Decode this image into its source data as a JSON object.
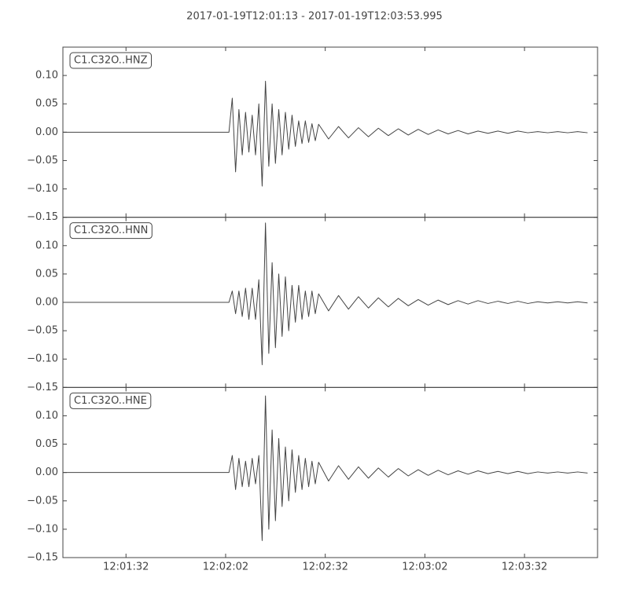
{
  "chart_data": [
    {
      "type": "line",
      "title": "2017-01-19T12:01:13  -  2017-01-19T12:03:53.995",
      "label": "C1.C32O..HNZ",
      "color": "#444444",
      "x": [
        "12:01:13",
        "12:02:03",
        "12:02:04",
        "12:02:05",
        "12:02:06",
        "12:02:07",
        "12:02:08",
        "12:02:09",
        "12:02:10",
        "12:02:11",
        "12:02:12",
        "12:02:13",
        "12:02:14",
        "12:02:15",
        "12:02:16",
        "12:02:17",
        "12:02:18",
        "12:02:19",
        "12:02:20",
        "12:02:21",
        "12:02:22",
        "12:02:23",
        "12:02:24",
        "12:02:25",
        "12:02:26",
        "12:02:27",
        "12:02:28",
        "12:02:29",
        "12:02:30",
        "12:02:33",
        "12:02:36",
        "12:02:39",
        "12:02:42",
        "12:02:45",
        "12:02:48",
        "12:02:51",
        "12:02:54",
        "12:02:57",
        "12:03:00",
        "12:03:03",
        "12:03:06",
        "12:03:09",
        "12:03:12",
        "12:03:15",
        "12:03:18",
        "12:03:21",
        "12:03:24",
        "12:03:27",
        "12:03:30",
        "12:03:33",
        "12:03:36",
        "12:03:39",
        "12:03:42",
        "12:03:45",
        "12:03:48",
        "12:03:51"
      ],
      "values": [
        0,
        0,
        0.06,
        -0.07,
        0.04,
        -0.04,
        0.035,
        -0.035,
        0.03,
        -0.04,
        0.05,
        -0.095,
        0.09,
        -0.06,
        0.05,
        -0.055,
        0.04,
        -0.04,
        0.035,
        -0.03,
        0.03,
        -0.025,
        0.02,
        -0.02,
        0.02,
        -0.018,
        0.015,
        -0.015,
        0.014,
        -0.012,
        0.01,
        -0.01,
        0.008,
        -0.008,
        0.007,
        -0.006,
        0.006,
        -0.005,
        0.005,
        -0.004,
        0.004,
        -0.003,
        0.003,
        -0.003,
        0.002,
        -0.002,
        0.002,
        -0.002,
        0.002,
        -0.001,
        0.001,
        -0.001,
        0.001,
        -0.001,
        0.001,
        -0.001
      ],
      "xlim": [
        "12:01:13",
        "12:03:53.995"
      ],
      "xticks": [
        "12:01:32",
        "12:02:02",
        "12:02:32",
        "12:03:02",
        "12:03:32"
      ],
      "ylim": [
        -0.15,
        0.15
      ],
      "yticks": [
        {
          "value": 0.1,
          "label": "0.10"
        },
        0.05,
        {
          "value": 0,
          "label": "0.00"
        },
        {
          "value": -0.05,
          "label": "−0.05"
        },
        {
          "value": -0.1,
          "label": "−0.10"
        },
        {
          "value": -0.15,
          "label": "−0.15"
        }
      ]
    },
    {
      "type": "line",
      "label": "C1.C32O..HNN",
      "color": "#444444",
      "x": [
        "12:01:13",
        "12:02:03",
        "12:02:04",
        "12:02:05",
        "12:02:06",
        "12:02:07",
        "12:02:08",
        "12:02:09",
        "12:02:10",
        "12:02:11",
        "12:02:12",
        "12:02:13",
        "12:02:14",
        "12:02:15",
        "12:02:16",
        "12:02:17",
        "12:02:18",
        "12:02:19",
        "12:02:20",
        "12:02:21",
        "12:02:22",
        "12:02:23",
        "12:02:24",
        "12:02:25",
        "12:02:26",
        "12:02:27",
        "12:02:28",
        "12:02:29",
        "12:02:30",
        "12:02:33",
        "12:02:36",
        "12:02:39",
        "12:02:42",
        "12:02:45",
        "12:02:48",
        "12:02:51",
        "12:02:54",
        "12:02:57",
        "12:03:00",
        "12:03:03",
        "12:03:06",
        "12:03:09",
        "12:03:12",
        "12:03:15",
        "12:03:18",
        "12:03:21",
        "12:03:24",
        "12:03:27",
        "12:03:30",
        "12:03:33",
        "12:03:36",
        "12:03:39",
        "12:03:42",
        "12:03:45",
        "12:03:48",
        "12:03:51"
      ],
      "values": [
        0,
        0,
        0.02,
        -0.02,
        0.02,
        -0.025,
        0.025,
        -0.03,
        0.025,
        -0.03,
        0.04,
        -0.11,
        0.14,
        -0.09,
        0.07,
        -0.08,
        0.05,
        -0.06,
        0.045,
        -0.05,
        0.03,
        -0.035,
        0.03,
        -0.03,
        0.02,
        -0.025,
        0.02,
        -0.02,
        0.015,
        -0.015,
        0.012,
        -0.012,
        0.01,
        -0.01,
        0.008,
        -0.008,
        0.007,
        -0.006,
        0.005,
        -0.005,
        0.004,
        -0.004,
        0.003,
        -0.003,
        0.003,
        -0.002,
        0.002,
        -0.002,
        0.002,
        -0.002,
        0.001,
        -0.001,
        0.001,
        -0.001,
        0.001,
        -0.001
      ],
      "xlim": [
        "12:01:13",
        "12:03:53.995"
      ],
      "xticks": [
        "12:01:32",
        "12:02:02",
        "12:02:32",
        "12:03:02",
        "12:03:32"
      ],
      "ylim": [
        -0.15,
        0.15
      ],
      "yticks": [
        {
          "value": 0.1,
          "label": "0.10"
        },
        0.05,
        {
          "value": 0,
          "label": "0.00"
        },
        {
          "value": -0.05,
          "label": "−0.05"
        },
        {
          "value": -0.1,
          "label": "−0.10"
        },
        {
          "value": -0.15,
          "label": "−0.15"
        }
      ]
    },
    {
      "type": "line",
      "label": "C1.C32O..HNE",
      "color": "#444444",
      "x": [
        "12:01:13",
        "12:02:03",
        "12:02:04",
        "12:02:05",
        "12:02:06",
        "12:02:07",
        "12:02:08",
        "12:02:09",
        "12:02:10",
        "12:02:11",
        "12:02:12",
        "12:02:13",
        "12:02:14",
        "12:02:15",
        "12:02:16",
        "12:02:17",
        "12:02:18",
        "12:02:19",
        "12:02:20",
        "12:02:21",
        "12:02:22",
        "12:02:23",
        "12:02:24",
        "12:02:25",
        "12:02:26",
        "12:02:27",
        "12:02:28",
        "12:02:29",
        "12:02:30",
        "12:02:33",
        "12:02:36",
        "12:02:39",
        "12:02:42",
        "12:02:45",
        "12:02:48",
        "12:02:51",
        "12:02:54",
        "12:02:57",
        "12:03:00",
        "12:03:03",
        "12:03:06",
        "12:03:09",
        "12:03:12",
        "12:03:15",
        "12:03:18",
        "12:03:21",
        "12:03:24",
        "12:03:27",
        "12:03:30",
        "12:03:33",
        "12:03:36",
        "12:03:39",
        "12:03:42",
        "12:03:45",
        "12:03:48",
        "12:03:51"
      ],
      "values": [
        0,
        0,
        0.03,
        -0.03,
        0.025,
        -0.025,
        0.02,
        -0.025,
        0.025,
        -0.02,
        0.03,
        -0.12,
        0.135,
        -0.1,
        0.075,
        -0.085,
        0.06,
        -0.06,
        0.045,
        -0.05,
        0.04,
        -0.035,
        0.03,
        -0.03,
        0.025,
        -0.025,
        0.02,
        -0.02,
        0.018,
        -0.015,
        0.012,
        -0.012,
        0.01,
        -0.01,
        0.008,
        -0.008,
        0.007,
        -0.006,
        0.005,
        -0.005,
        0.004,
        -0.004,
        0.003,
        -0.003,
        0.003,
        -0.002,
        0.002,
        -0.002,
        0.002,
        -0.002,
        0.001,
        -0.001,
        0.001,
        -0.001,
        0.001,
        -0.001
      ],
      "xlim": [
        "12:01:13",
        "12:03:53.995"
      ],
      "xticks": [
        "12:01:32",
        "12:02:02",
        "12:02:32",
        "12:03:02",
        "12:03:32"
      ],
      "ylim": [
        -0.15,
        0.15
      ],
      "yticks": [
        {
          "value": 0.1,
          "label": "0.10"
        },
        0.05,
        {
          "value": 0,
          "label": "0.00"
        },
        {
          "value": -0.05,
          "label": "−0.05"
        },
        {
          "value": -0.1,
          "label": "−0.10"
        },
        {
          "value": -0.15,
          "label": "−0.15"
        }
      ]
    }
  ]
}
